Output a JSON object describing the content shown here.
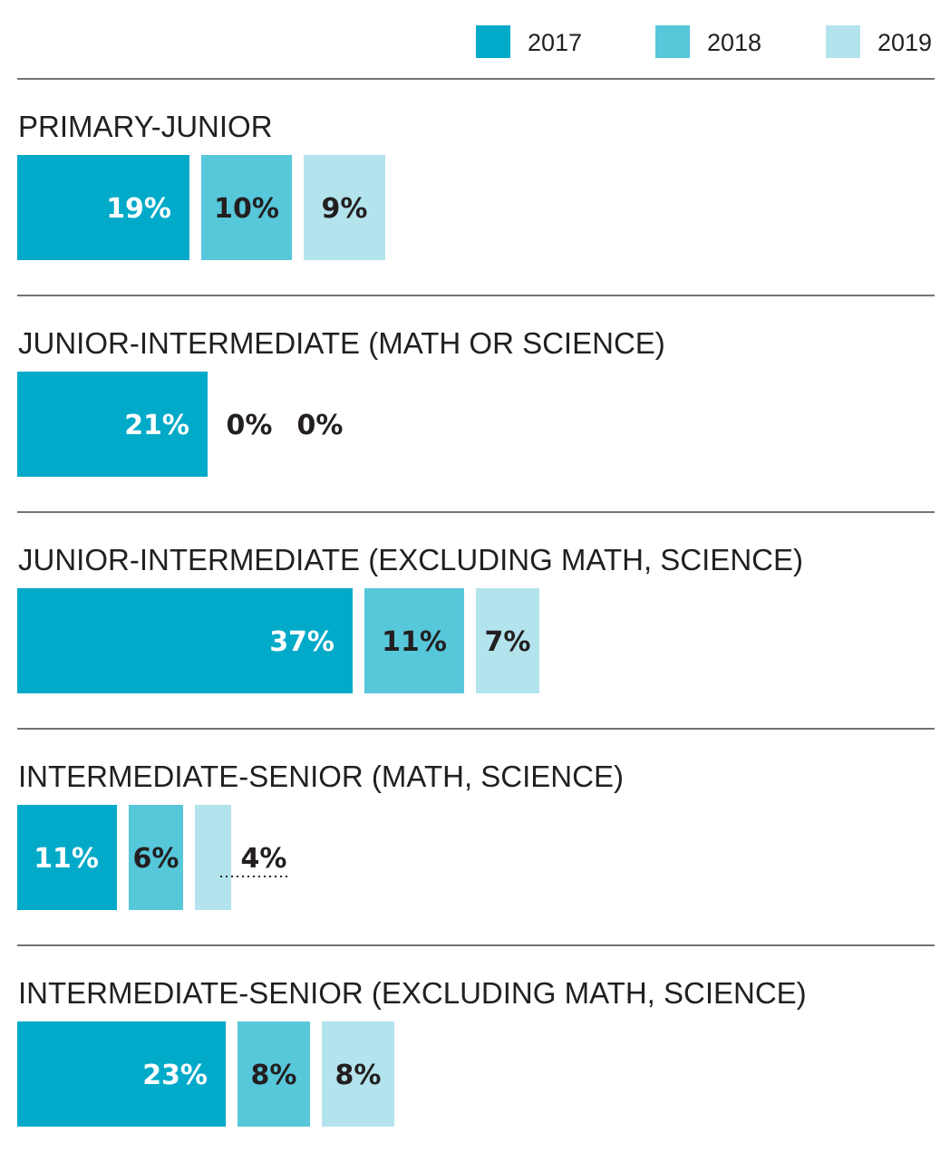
{
  "chart_data": {
    "type": "bar",
    "orientation": "horizontal",
    "value_unit": "%",
    "series_names": [
      "2017",
      "2018",
      "2019"
    ],
    "colors": {
      "2017": "#00aac8",
      "2018": "#57c7da",
      "2019": "#b3e3ec",
      "label_on_dark": "#ffffff",
      "label_on_light": "#231f20",
      "divider": "#231f20"
    },
    "legend": {
      "position": "top-right",
      "items": [
        "2017",
        "2018",
        "2019"
      ]
    },
    "groups": [
      {
        "title": "PRIMARY-JUNIOR",
        "values": [
          19,
          10,
          9
        ],
        "labels": [
          "19%",
          "10%",
          "9%"
        ]
      },
      {
        "title": "JUNIOR-INTERMEDIATE (MATH OR SCIENCE)",
        "values": [
          21,
          0,
          0
        ],
        "labels": [
          "21%",
          "0%",
          "0%"
        ]
      },
      {
        "title": "JUNIOR-INTERMEDIATE (EXCLUDING MATH, SCIENCE)",
        "values": [
          37,
          11,
          7
        ],
        "labels": [
          "37%",
          "11%",
          "7%"
        ]
      },
      {
        "title": "INTERMEDIATE-SENIOR (MATH, SCIENCE)",
        "values": [
          11,
          6,
          4
        ],
        "labels": [
          "11%",
          "6%",
          "4%"
        ]
      },
      {
        "title": "INTERMEDIATE-SENIOR (EXCLUDING MATH, SCIENCE)",
        "values": [
          23,
          8,
          8
        ],
        "labels": [
          "23%",
          "8%",
          "8%"
        ]
      }
    ]
  }
}
